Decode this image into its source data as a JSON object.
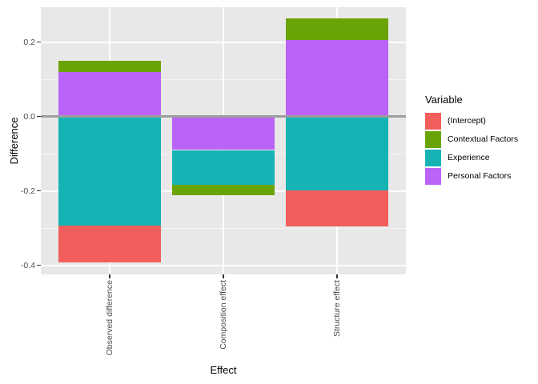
{
  "chart_data": {
    "type": "bar",
    "stacked": true,
    "diverging": true,
    "orientation": "vertical",
    "title": "",
    "xlabel": "Effect",
    "ylabel": "Difference",
    "legend_title": "Variable",
    "legend_position": "right",
    "grid": true,
    "categories": [
      "Observed difference",
      "Composition effect",
      "Structure effect"
    ],
    "series": [
      {
        "name": "(Intercept)",
        "color": "#F25E5B",
        "values": [
          -0.099,
          0.0,
          -0.098
        ]
      },
      {
        "name": "Contextual Factors",
        "color": "#6AA306",
        "values": [
          0.032,
          -0.029,
          0.059
        ]
      },
      {
        "name": "Experience",
        "color": "#16B3B5",
        "values": [
          -0.293,
          -0.093,
          -0.198
        ]
      },
      {
        "name": "Personal Factors",
        "color": "#BA63F8",
        "values": [
          0.119,
          -0.09,
          0.205
        ]
      }
    ],
    "stack_order_note": "segments stack from the zero line outward in reverse series order (Personal Factors nearest zero, then Experience, Contextual Factors, (Intercept))",
    "y_ticks": [
      {
        "value": 0.2,
        "label": "0.2"
      },
      {
        "value": 0.0,
        "label": "0.0"
      },
      {
        "value": -0.2,
        "label": "-0.2"
      },
      {
        "value": -0.4,
        "label": "-0.4"
      }
    ],
    "y_minor_ticks": [
      0.1,
      -0.1,
      -0.3
    ],
    "ylim": [
      -0.425,
      0.294
    ],
    "zero_line": true
  },
  "style": {
    "plot_background": "#FFFFFF",
    "panel_background": "#E8E8E8",
    "grid_major_color": "#FFFFFF",
    "grid_minor_color": "#FFFFFF",
    "zero_line_color": "#9E9E9E",
    "axis_tick_color": "#333333",
    "tick_label_color": "#4D4D4D",
    "title_color": "#000000"
  }
}
